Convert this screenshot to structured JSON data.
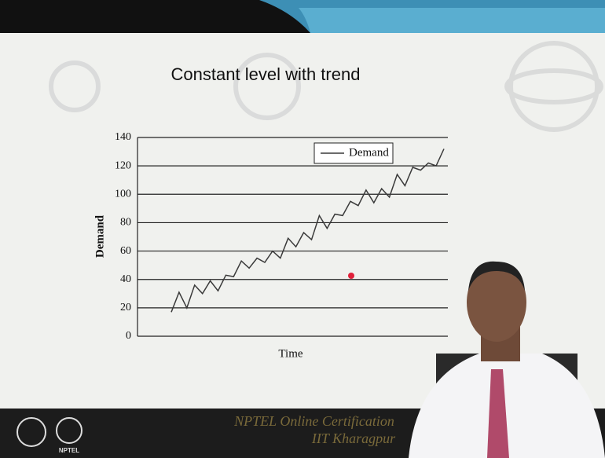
{
  "chart_data": {
    "type": "line",
    "title": "Constant level with trend",
    "x_label": "Time",
    "y_label": "Demand",
    "categories": [
      null,
      null,
      null,
      null,
      null,
      null,
      null,
      null,
      null,
      null,
      null,
      null,
      null,
      null,
      null,
      null,
      null,
      null,
      null,
      null,
      null,
      null,
      null,
      null,
      null,
      null,
      null,
      null,
      null,
      null,
      null,
      null,
      null,
      null,
      null,
      null
    ],
    "series": [
      {
        "name": "Demand",
        "color": "#3a3a3a",
        "values": [
          17,
          31,
          20,
          36,
          30,
          39,
          32,
          43,
          42,
          53,
          48,
          55,
          52,
          60,
          55,
          69,
          63,
          73,
          68,
          85,
          76,
          86,
          85,
          95,
          92,
          103,
          94,
          104,
          98,
          114,
          106,
          119,
          117,
          122,
          120,
          132
        ]
      }
    ],
    "ylim": [
      0,
      140
    ],
    "yticks": [
      0,
      20,
      40,
      60,
      80,
      100,
      120,
      140
    ],
    "grid": true,
    "legend": "top-right"
  },
  "footer": {
    "line1": "NPTEL Online Certification",
    "line2": "IIT Kharagpur",
    "logo": "NPTEL"
  }
}
